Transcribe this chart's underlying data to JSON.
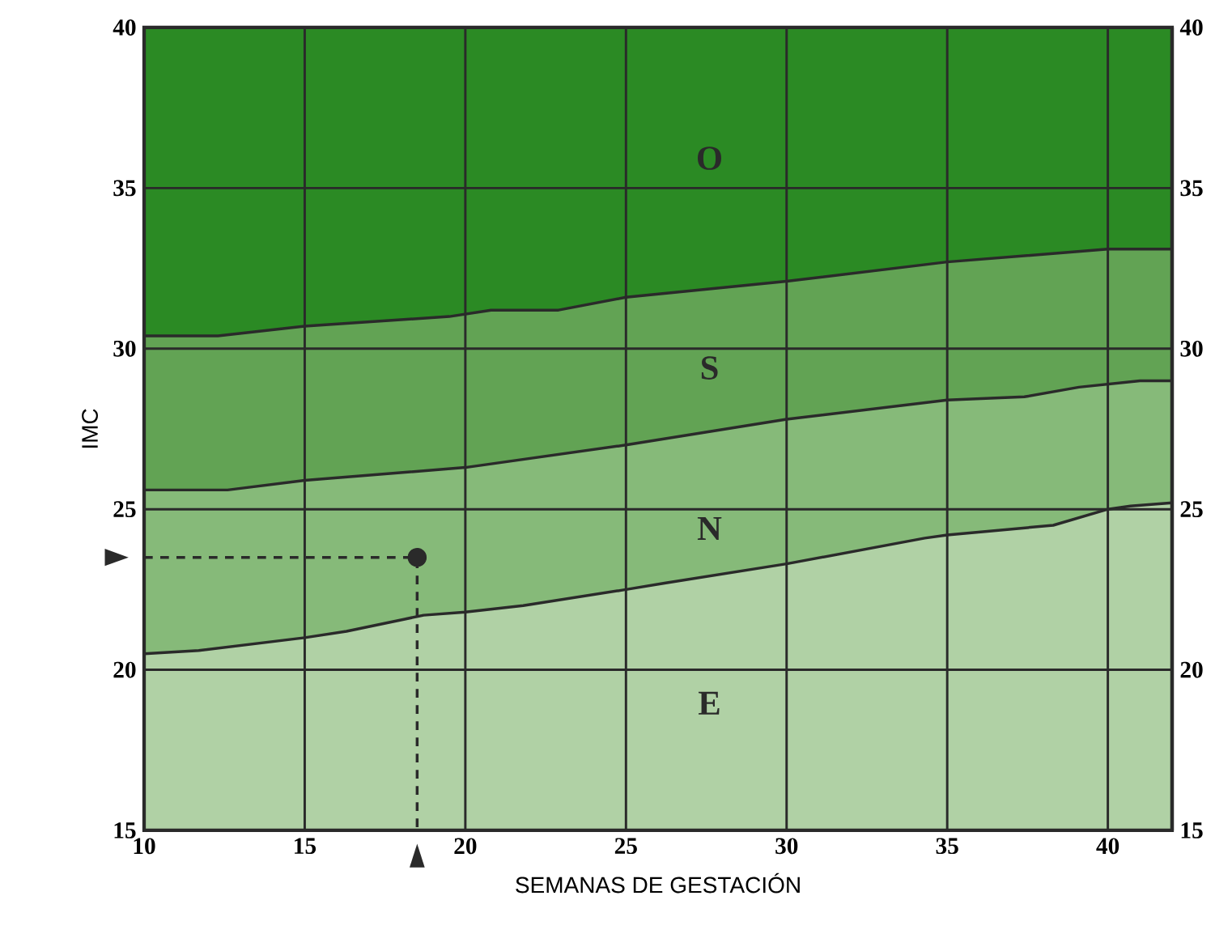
{
  "chart_data": {
    "type": "area",
    "xlabel": "SEMANAS DE GESTACIÓN",
    "ylabel": "IMC",
    "xlim": [
      10,
      42
    ],
    "ylim": [
      15,
      40
    ],
    "xticks": [
      10,
      15,
      20,
      25,
      30,
      35,
      40
    ],
    "yticks": [
      15,
      20,
      25,
      30,
      35,
      40
    ],
    "y2lim": [
      15,
      40
    ],
    "y2ticks": [
      15,
      20,
      25,
      30,
      35,
      40
    ],
    "grid": true,
    "bands": [
      {
        "axis": "y",
        "from": 30.4,
        "to": 40,
        "label": "O",
        "color": "#2b8a24"
      }
    ],
    "series": [
      {
        "name": "S",
        "color": "#62a354",
        "x": [
          10,
          12.3,
          15,
          19.5,
          20.8,
          22.9,
          25,
          30,
          35,
          40,
          42
        ],
        "values": [
          30.4,
          30.4,
          30.7,
          31.0,
          31.2,
          31.2,
          31.6,
          32.1,
          32.7,
          33.1,
          33.1
        ]
      },
      {
        "name": "N",
        "color": "#86ba79",
        "x": [
          10,
          12.6,
          15,
          20,
          25,
          30,
          35,
          37.4,
          39.1,
          41,
          42
        ],
        "values": [
          25.6,
          25.6,
          25.9,
          26.3,
          27.0,
          27.8,
          28.4,
          28.5,
          28.8,
          29.0,
          29.0
        ]
      },
      {
        "name": "E",
        "color": "#b0d1a5",
        "x": [
          10,
          11.7,
          15,
          16.3,
          18.7,
          20,
          21.8,
          25,
          26.2,
          30,
          34.3,
          35,
          38.3,
          40,
          40.7,
          42
        ],
        "values": [
          20.5,
          20.6,
          21.0,
          21.2,
          21.7,
          21.8,
          22.0,
          22.5,
          22.7,
          23.3,
          24.1,
          24.2,
          24.5,
          25.0,
          25.1,
          25.2
        ]
      },
      {
        "type": "line",
        "line_style": "dashed",
        "color": "#2a2a2a",
        "x": [
          10,
          18.5,
          18.5
        ],
        "values": [
          23.5,
          23.5,
          15
        ]
      },
      {
        "type": "scatter",
        "marker": "circle",
        "color": "#2a2a2a",
        "x": [
          18.5
        ],
        "values": [
          23.5
        ]
      }
    ]
  }
}
